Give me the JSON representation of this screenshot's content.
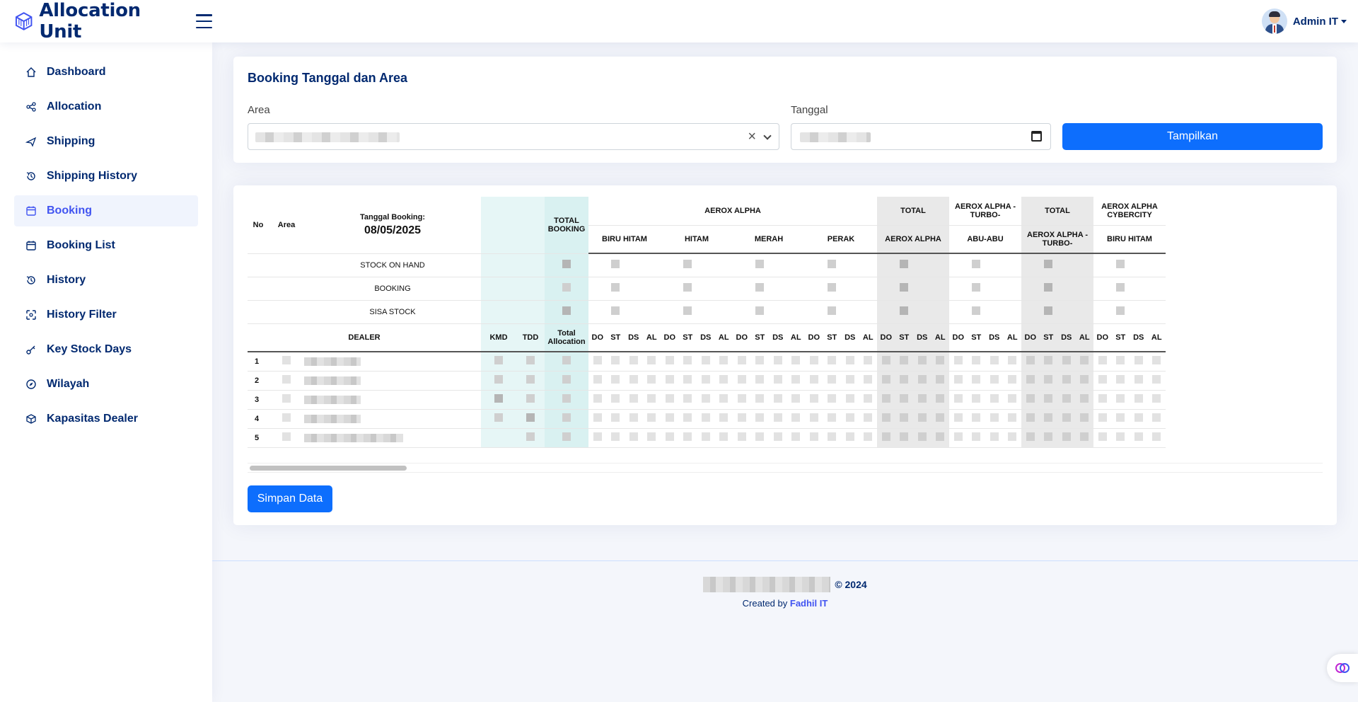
{
  "app": {
    "title": "Allocation Unit",
    "user": "Admin IT"
  },
  "sidebar": {
    "items": [
      {
        "label": "Dashboard",
        "icon": "home-icon",
        "active": false
      },
      {
        "label": "Allocation",
        "icon": "share-icon",
        "active": false
      },
      {
        "label": "Shipping",
        "icon": "send-icon",
        "active": false
      },
      {
        "label": "Shipping History",
        "icon": "history-icon",
        "active": false
      },
      {
        "label": "Booking",
        "icon": "calendar-icon",
        "active": true
      },
      {
        "label": "Booking List",
        "icon": "calendar-icon",
        "active": false
      },
      {
        "label": "History",
        "icon": "history-icon",
        "active": false
      },
      {
        "label": "History Filter",
        "icon": "filter-icon",
        "active": false
      },
      {
        "label": "Key Stock Days",
        "icon": "key-icon",
        "active": false
      },
      {
        "label": "Wilayah",
        "icon": "compass-icon",
        "active": false
      },
      {
        "label": "Kapasitas Dealer",
        "icon": "box-icon",
        "active": false
      }
    ]
  },
  "filter": {
    "title": "Booking Tanggal dan Area",
    "area_label": "Area",
    "tanggal_label": "Tanggal",
    "button_label": "Tampilkan"
  },
  "table": {
    "col_no": "No",
    "col_area": "Area",
    "booking_date_label": "Tanggal Booking:",
    "booking_date": "08/05/2025",
    "total_booking": "TOTAL BOOKING",
    "groups": [
      {
        "name": "AEROX ALPHA",
        "subs": [
          "BIRU HITAM",
          "HITAM",
          "MERAH",
          "PERAK"
        ],
        "total": false
      },
      {
        "name": "TOTAL",
        "subs": [
          "AEROX ALPHA"
        ],
        "total": true
      },
      {
        "name": "AEROX ALPHA - TURBO-",
        "subs": [
          "ABU-ABU"
        ],
        "total": false
      },
      {
        "name": "TOTAL",
        "subs": [
          "AEROX ALPHA - TURBO-"
        ],
        "total": true
      },
      {
        "name": "AEROX ALPHA CYBERCITY",
        "subs": [
          "BIRU HITAM"
        ],
        "total": false
      }
    ],
    "stock_rows": [
      "STOCK ON HAND",
      "BOOKING",
      "SISA STOCK"
    ],
    "col_dealer": "DEALER",
    "col_kmd": "KMD",
    "col_tdd": "TDD",
    "col_total_allocation": "Total Allocation",
    "sub_cols": [
      "DO",
      "ST",
      "DS",
      "AL"
    ],
    "rows": [
      "1",
      "2",
      "3",
      "4",
      "5"
    ],
    "save_label": "Simpan Data"
  },
  "footer": {
    "year": "© 2024",
    "created_prefix": "Created by",
    "author": "Fadhil IT"
  },
  "colors": {
    "primary": "#0d6efd",
    "navy": "#012970",
    "accent": "#4154f1"
  }
}
